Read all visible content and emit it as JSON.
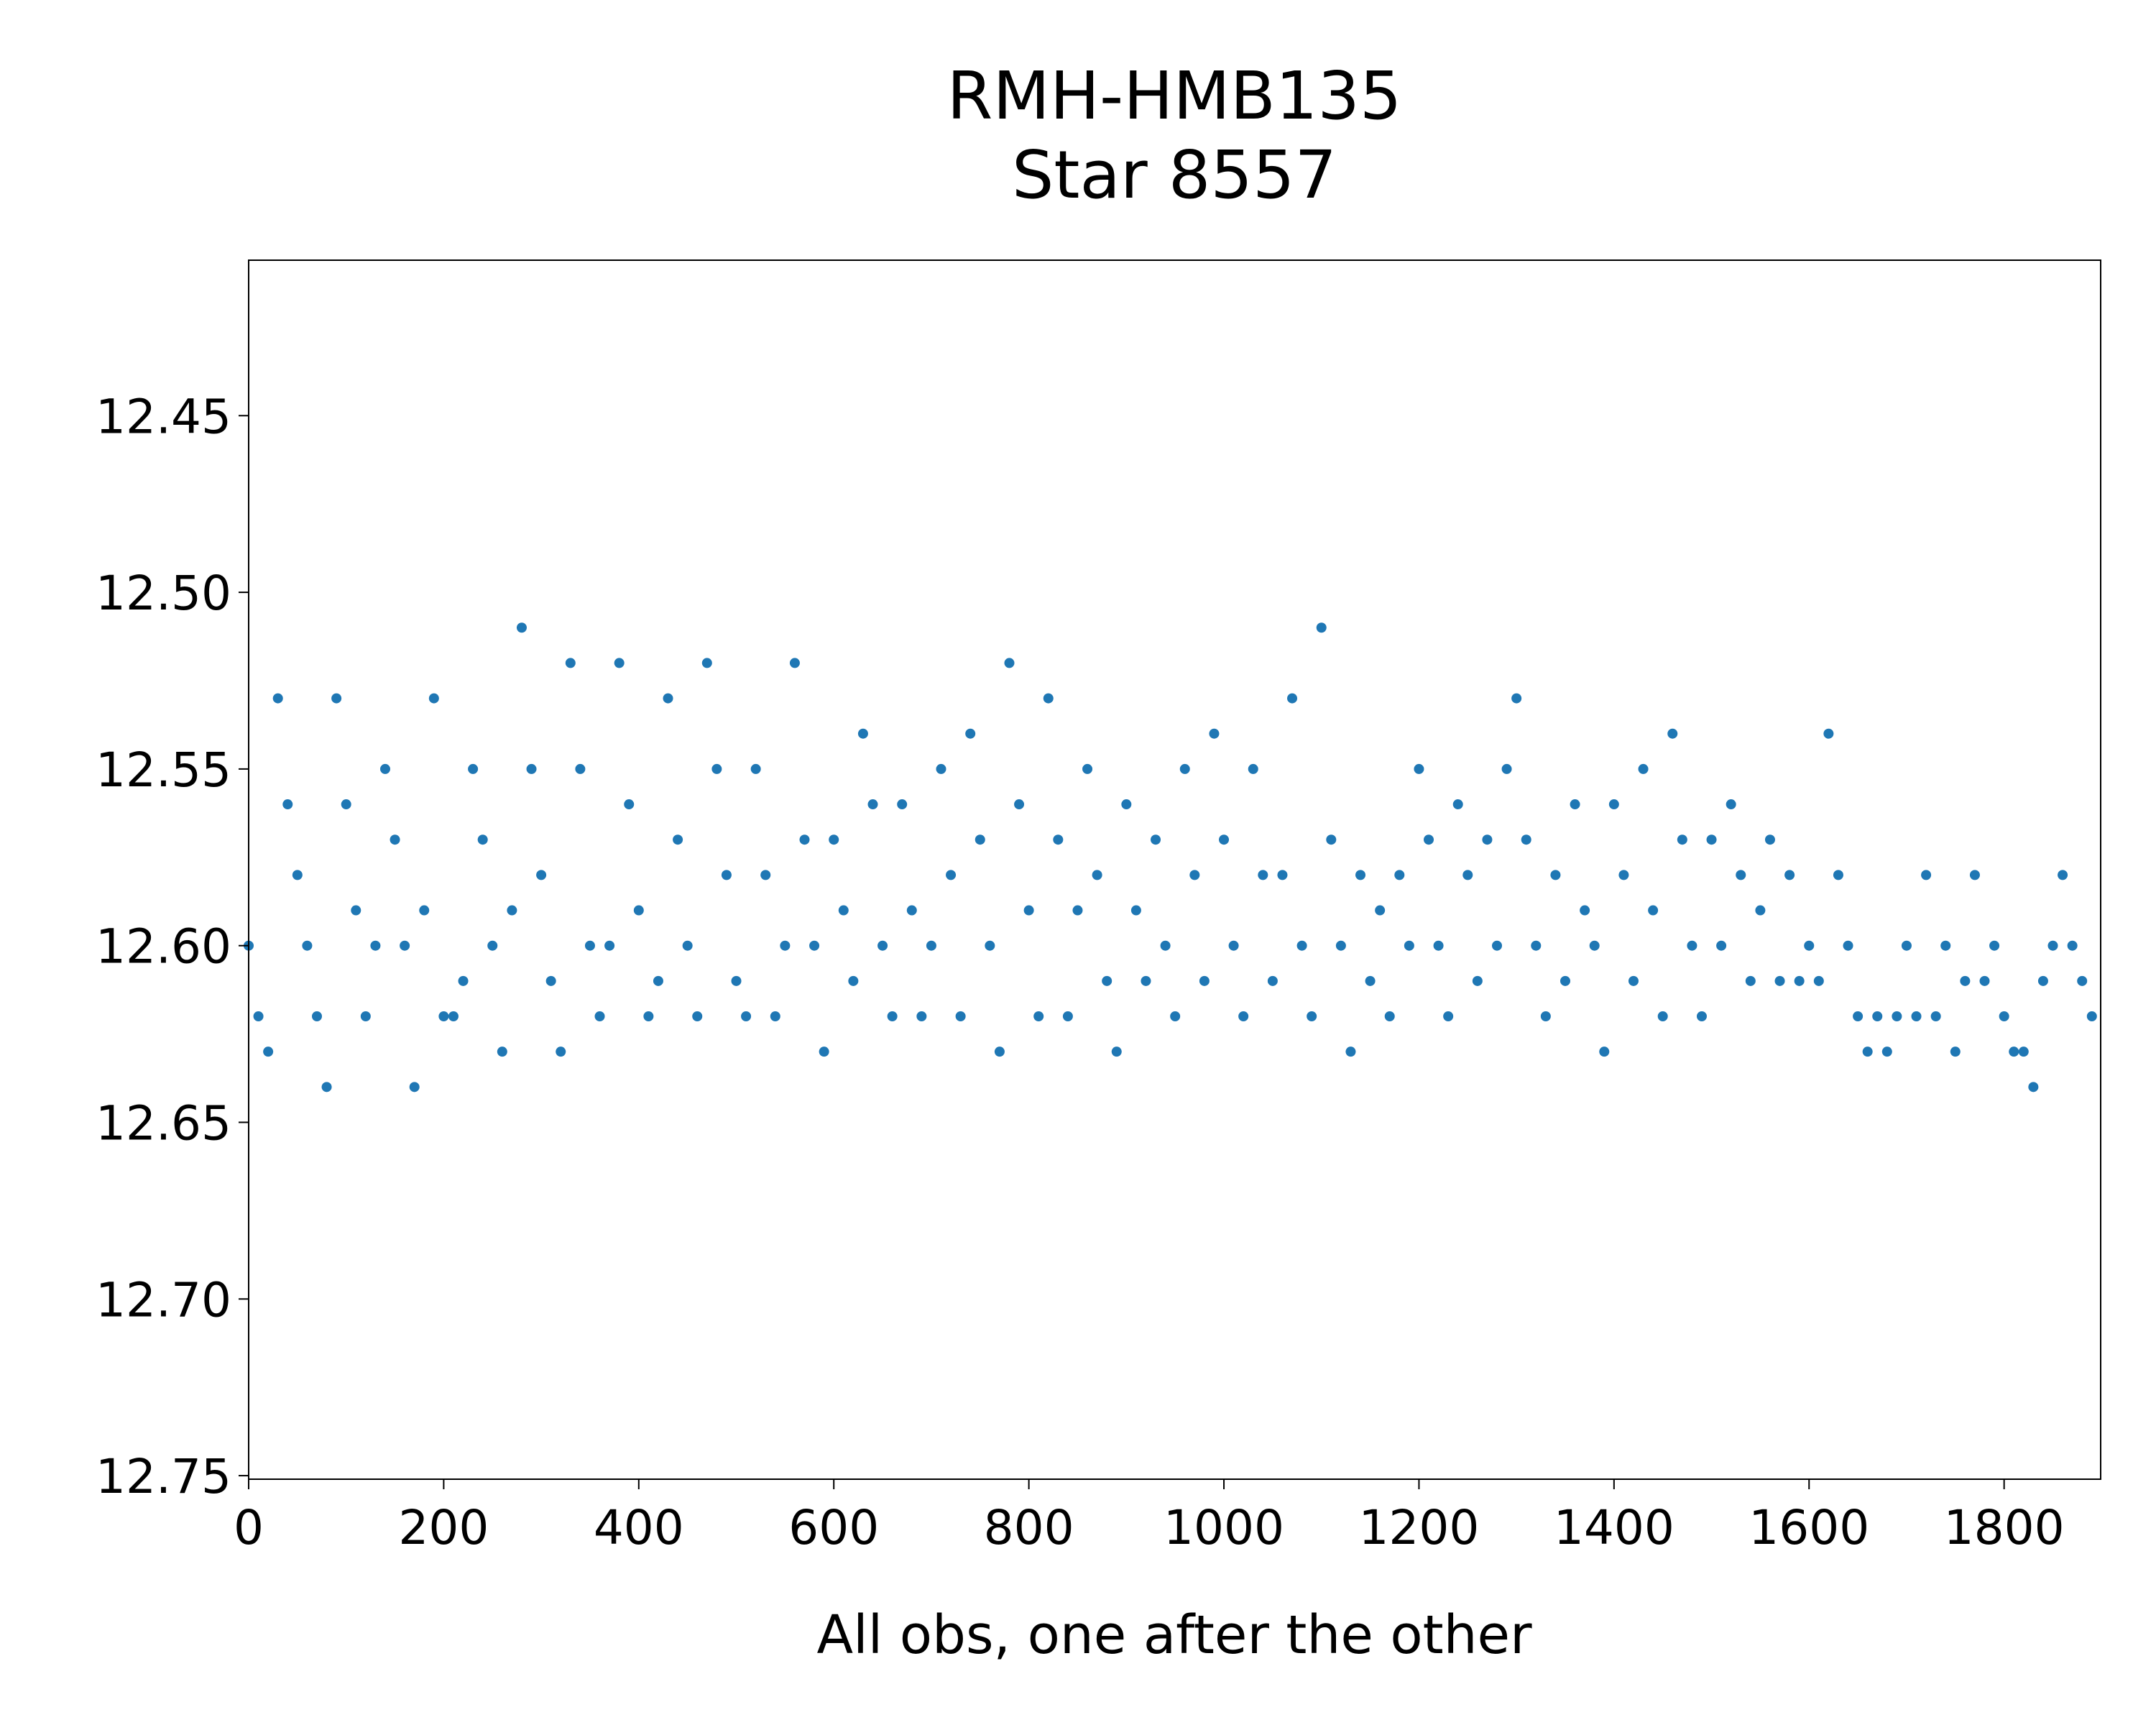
{
  "chart_data": {
    "type": "scatter",
    "title": [
      "RMH-HMB135",
      "Star 8557"
    ],
    "xlabel": "All obs, one after the other",
    "ylabel": "",
    "xlim": [
      0,
      1899
    ],
    "ylim": [
      12.751,
      12.406
    ],
    "y_inverted": true,
    "grid": false,
    "color": "#1f77b4",
    "xticks": [
      0,
      200,
      400,
      600,
      800,
      1000,
      1200,
      1400,
      1600,
      1800
    ],
    "xtick_labels": [
      "0",
      "200",
      "400",
      "600",
      "800",
      "1000",
      "1200",
      "1400",
      "1600",
      "1800"
    ],
    "yticks": [
      12.45,
      12.5,
      12.55,
      12.6,
      12.65,
      12.7,
      12.75
    ],
    "ytick_labels": [
      "12.45",
      "12.50",
      "12.55",
      "12.60",
      "12.65",
      "12.70",
      "12.75"
    ],
    "x_step": 10,
    "y": [
      12.6,
      12.62,
      12.63,
      12.53,
      12.56,
      12.58,
      12.6,
      12.62,
      12.64,
      12.53,
      12.56,
      12.59,
      12.62,
      12.6,
      12.55,
      12.57,
      12.6,
      12.64,
      12.59,
      12.53,
      12.62,
      12.62,
      12.61,
      12.55,
      12.57,
      12.6,
      12.63,
      12.59,
      12.51,
      12.55,
      12.58,
      12.61,
      12.63,
      12.52,
      12.55,
      12.6,
      12.62,
      12.6,
      12.52,
      12.56,
      12.59,
      12.62,
      12.61,
      12.53,
      12.57,
      12.6,
      12.62,
      12.52,
      12.55,
      12.58,
      12.61,
      12.62,
      12.55,
      12.58,
      12.62,
      12.6,
      12.52,
      12.57,
      12.6,
      12.63,
      12.57,
      12.59,
      12.61,
      12.54,
      12.56,
      12.6,
      12.62,
      12.56,
      12.59,
      12.62,
      12.6,
      12.55,
      12.58,
      12.62,
      12.54,
      12.57,
      12.6,
      12.63,
      12.52,
      12.56,
      12.59,
      12.62,
      12.53,
      12.57,
      12.62,
      12.59,
      12.55,
      12.58,
      12.61,
      12.63,
      12.56,
      12.59,
      12.61,
      12.57,
      12.6,
      12.62,
      12.55,
      12.58,
      12.61,
      12.54,
      12.57,
      12.6,
      12.62,
      12.55,
      12.58,
      12.61,
      12.58,
      12.53,
      12.6,
      12.62,
      12.51,
      12.57,
      12.6,
      12.63,
      12.58,
      12.61,
      12.59,
      12.62,
      12.58,
      12.6,
      12.55,
      12.57,
      12.6,
      12.62,
      12.56,
      12.58,
      12.61,
      12.57,
      12.6,
      12.55,
      12.53,
      12.57,
      12.6,
      12.62,
      12.58,
      12.61,
      12.56,
      12.59,
      12.6,
      12.63,
      12.56,
      12.58,
      12.61,
      12.55,
      12.59,
      12.62,
      12.54,
      12.57,
      12.6,
      12.62,
      12.57,
      12.6,
      12.56,
      12.58,
      12.61,
      12.59,
      12.57,
      12.61,
      12.58,
      12.61,
      12.6,
      12.61,
      12.54,
      12.58,
      12.6,
      12.62,
      12.63,
      12.62,
      12.63,
      12.62,
      12.6,
      12.62,
      12.58,
      12.62,
      12.6,
      12.63,
      12.61,
      12.58,
      12.61,
      12.6,
      12.62,
      12.63,
      12.63,
      12.64,
      12.61,
      12.6,
      12.58,
      12.6,
      12.61,
      12.62
    ]
  }
}
